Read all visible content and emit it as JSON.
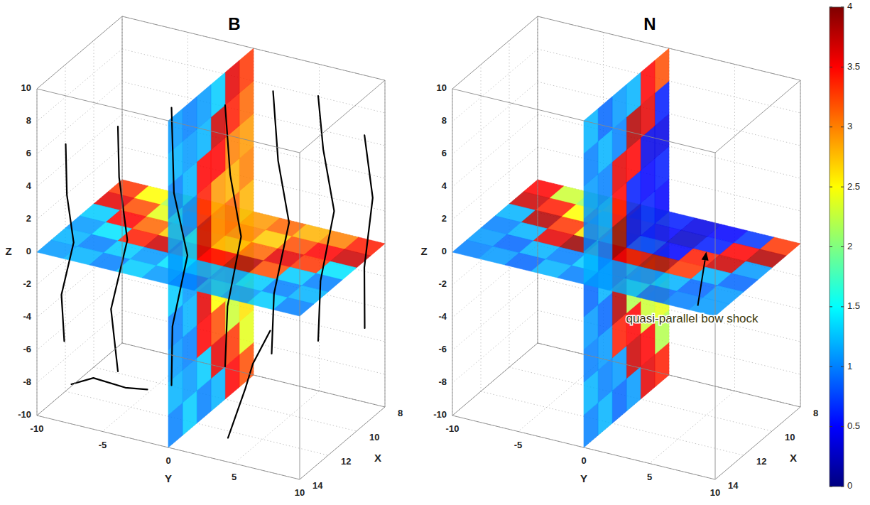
{
  "chart_data": [
    {
      "type": "slice3d",
      "title": "B",
      "xlabel": "X",
      "ylabel": "Y",
      "zlabel": "Z",
      "xlim": [
        8,
        14
      ],
      "ylim": [
        -10,
        10
      ],
      "zlim": [
        -10,
        10
      ],
      "xticks": [
        8,
        10,
        12,
        14
      ],
      "yticks": [
        -10,
        -5,
        0,
        5,
        10
      ],
      "zticks": [
        -10,
        -8,
        -6,
        -4,
        -2,
        0,
        2,
        4,
        6,
        8,
        10
      ],
      "grid": true,
      "slices": [
        {
          "plane": "z",
          "at": 0,
          "x_edges": [
            8,
            9,
            10,
            11,
            12,
            13,
            14
          ],
          "y_edges": [
            -10,
            -8,
            -6,
            -4,
            -2,
            0,
            2,
            4,
            6,
            8,
            10
          ],
          "values": [
            [
              3.3,
              2.5,
              2.2,
              2.6,
              2.3,
              2.9,
              3.1,
              2.8,
              3.0,
              3.4
            ],
            [
              3.6,
              3.2,
              2.4,
              2.1,
              2.6,
              3.0,
              2.7,
              3.2,
              3.5,
              3.7
            ],
            [
              1.3,
              3.5,
              3.1,
              2.7,
              2.4,
              2.8,
              3.1,
              3.6,
              3.3,
              1.4
            ],
            [
              1.1,
              1.4,
              3.4,
              3.7,
              3.2,
              3.5,
              3.8,
              3.2,
              1.3,
              1.0
            ],
            [
              1.2,
              1.0,
              1.3,
              1.1,
              1.4,
              1.2,
              1.1,
              1.3,
              1.0,
              1.2
            ],
            [
              1.1,
              1.2,
              1.0,
              1.3,
              1.1,
              1.0,
              1.2,
              1.1,
              1.3,
              1.0
            ]
          ]
        },
        {
          "plane": "y",
          "at": 0,
          "x_edges": [
            8,
            9,
            10,
            11,
            12,
            13,
            14
          ],
          "z_edges": [
            -10,
            -8,
            -6,
            -4,
            -2,
            0,
            2,
            4,
            6,
            8,
            10
          ],
          "values": [
            [
              3.2,
              2.4,
              2.6,
              2.2,
              2.5,
              2.8,
              3.0,
              2.9,
              3.1,
              3.3
            ],
            [
              3.5,
              3.3,
              2.3,
              2.6,
              2.2,
              3.1,
              2.8,
              3.0,
              3.4,
              3.6
            ],
            [
              1.2,
              3.6,
              3.2,
              2.5,
              2.7,
              3.0,
              2.9,
              3.5,
              3.7,
              1.3
            ],
            [
              1.0,
              1.3,
              3.5,
              3.6,
              3.3,
              3.7,
              3.4,
              3.5,
              1.2,
              1.1
            ],
            [
              1.3,
              1.1,
              1.0,
              1.2,
              1.1,
              1.3,
              1.0,
              1.2,
              1.1,
              1.0
            ],
            [
              1.0,
              1.2,
              1.1,
              1.0,
              1.3,
              1.1,
              1.2,
              1.0,
              1.2,
              1.1
            ]
          ]
        }
      ],
      "field_lines": [
        [
          [
            13,
            -9,
            -6
          ],
          [
            13.2,
            -9,
            -3
          ],
          [
            12.8,
            -8.5,
            0
          ],
          [
            13,
            -8.8,
            3
          ],
          [
            12.9,
            -9,
            6
          ]
        ],
        [
          [
            12,
            -6,
            -8
          ],
          [
            12.3,
            -6.2,
            -4
          ],
          [
            11.8,
            -5.5,
            0
          ],
          [
            12.1,
            -5.8,
            4
          ],
          [
            12,
            -6,
            7
          ]
        ],
        [
          [
            11,
            -3,
            -9
          ],
          [
            11.4,
            -2.5,
            -5
          ],
          [
            10.8,
            -2,
            -1
          ],
          [
            11.2,
            -2.6,
            3
          ],
          [
            11,
            -3,
            8
          ]
        ],
        [
          [
            10,
            0,
            -8
          ],
          [
            10.3,
            0.5,
            -4
          ],
          [
            9.8,
            1,
            0
          ],
          [
            10.2,
            0.6,
            4
          ],
          [
            10,
            0,
            8
          ]
        ],
        [
          [
            9.5,
            3,
            -7
          ],
          [
            9.8,
            3.5,
            -3
          ],
          [
            9.2,
            4,
            1
          ],
          [
            9.6,
            3.6,
            5
          ],
          [
            9.4,
            3,
            9
          ]
        ],
        [
          [
            9,
            6,
            -6
          ],
          [
            9.3,
            6.5,
            -2
          ],
          [
            8.8,
            7,
            2
          ],
          [
            9.2,
            6.6,
            6
          ],
          [
            9,
            6,
            9
          ]
        ],
        [
          [
            8.5,
            9,
            -5
          ],
          [
            8.8,
            9.3,
            -1
          ],
          [
            8.4,
            9.5,
            3
          ],
          [
            8.7,
            9.2,
            7
          ]
        ],
        [
          [
            13.5,
            4,
            -9
          ],
          [
            13.2,
            5,
            -6
          ],
          [
            13.6,
            6,
            -4
          ],
          [
            13.3,
            7,
            -2
          ]
        ],
        [
          [
            12.5,
            -9,
            -9
          ],
          [
            12.8,
            -7,
            -8
          ],
          [
            12.4,
            -5,
            -8.5
          ],
          [
            12.7,
            -3,
            -8
          ]
        ]
      ]
    },
    {
      "type": "slice3d",
      "title": "N",
      "xlabel": "X",
      "ylabel": "Y",
      "zlabel": "Z",
      "xlim": [
        8,
        14
      ],
      "ylim": [
        -10,
        10
      ],
      "zlim": [
        -10,
        10
      ],
      "xticks": [
        8,
        10,
        12,
        14
      ],
      "yticks": [
        -10,
        -5,
        0,
        5,
        10
      ],
      "zticks": [
        -10,
        -8,
        -6,
        -4,
        -2,
        0,
        2,
        4,
        6,
        8,
        10
      ],
      "grid": true,
      "slices": [
        {
          "plane": "z",
          "at": 0,
          "x_edges": [
            8,
            9,
            10,
            11,
            12,
            13,
            14
          ],
          "y_edges": [
            -10,
            -8,
            -6,
            -4,
            -2,
            0,
            2,
            4,
            6,
            8,
            10
          ],
          "values": [
            [
              3.5,
              2.3,
              2.1,
              2.4,
              1.9,
              0.6,
              0.4,
              0.5,
              0.7,
              3.3
            ],
            [
              3.7,
              3.4,
              2.5,
              2.0,
              2.2,
              0.5,
              0.3,
              0.6,
              3.5,
              3.8
            ],
            [
              1.2,
              3.8,
              3.3,
              2.6,
              2.1,
              0.7,
              0.5,
              3.4,
              3.7,
              1.1
            ],
            [
              1.0,
              1.2,
              3.6,
              3.9,
              3.4,
              3.6,
              3.8,
              3.3,
              1.2,
              0.9
            ],
            [
              1.1,
              0.9,
              1.2,
              1.0,
              1.3,
              1.1,
              1.0,
              1.2,
              0.9,
              1.1
            ],
            [
              1.0,
              1.1,
              0.9,
              1.2,
              1.0,
              1.1,
              1.2,
              0.9,
              1.0,
              1.1
            ]
          ]
        },
        {
          "plane": "y",
          "at": 0,
          "x_edges": [
            8,
            9,
            10,
            11,
            12,
            13,
            14
          ],
          "z_edges": [
            -10,
            -8,
            -6,
            -4,
            -2,
            0,
            2,
            4,
            6,
            8,
            10
          ],
          "values": [
            [
              3.4,
              2.2,
              2.4,
              2.0,
              2.3,
              0.5,
              0.6,
              0.4,
              0.6,
              3.2
            ],
            [
              3.6,
              3.5,
              2.3,
              2.5,
              1.9,
              0.6,
              0.5,
              0.4,
              3.6,
              3.5
            ],
            [
              1.1,
              3.7,
              3.5,
              2.2,
              2.4,
              0.4,
              0.6,
              3.5,
              3.8,
              1.2
            ],
            [
              0.9,
              1.1,
              3.4,
              3.8,
              3.6,
              3.9,
              3.5,
              3.6,
              1.0,
              1.1
            ],
            [
              1.2,
              1.0,
              1.1,
              0.9,
              1.2,
              1.0,
              1.1,
              1.0,
              1.2,
              0.9
            ],
            [
              1.0,
              1.2,
              1.0,
              1.1,
              0.9,
              1.2,
              1.0,
              1.1,
              1.0,
              1.2
            ]
          ]
        }
      ],
      "annotations": [
        {
          "text": "quasi-parallel bow shock",
          "point": [
            10,
            5,
            0
          ]
        }
      ]
    }
  ],
  "colorbar": {
    "range": [
      0,
      4
    ],
    "ticks": [
      0,
      0.5,
      1,
      1.5,
      2,
      2.5,
      3,
      3.5,
      4
    ]
  }
}
